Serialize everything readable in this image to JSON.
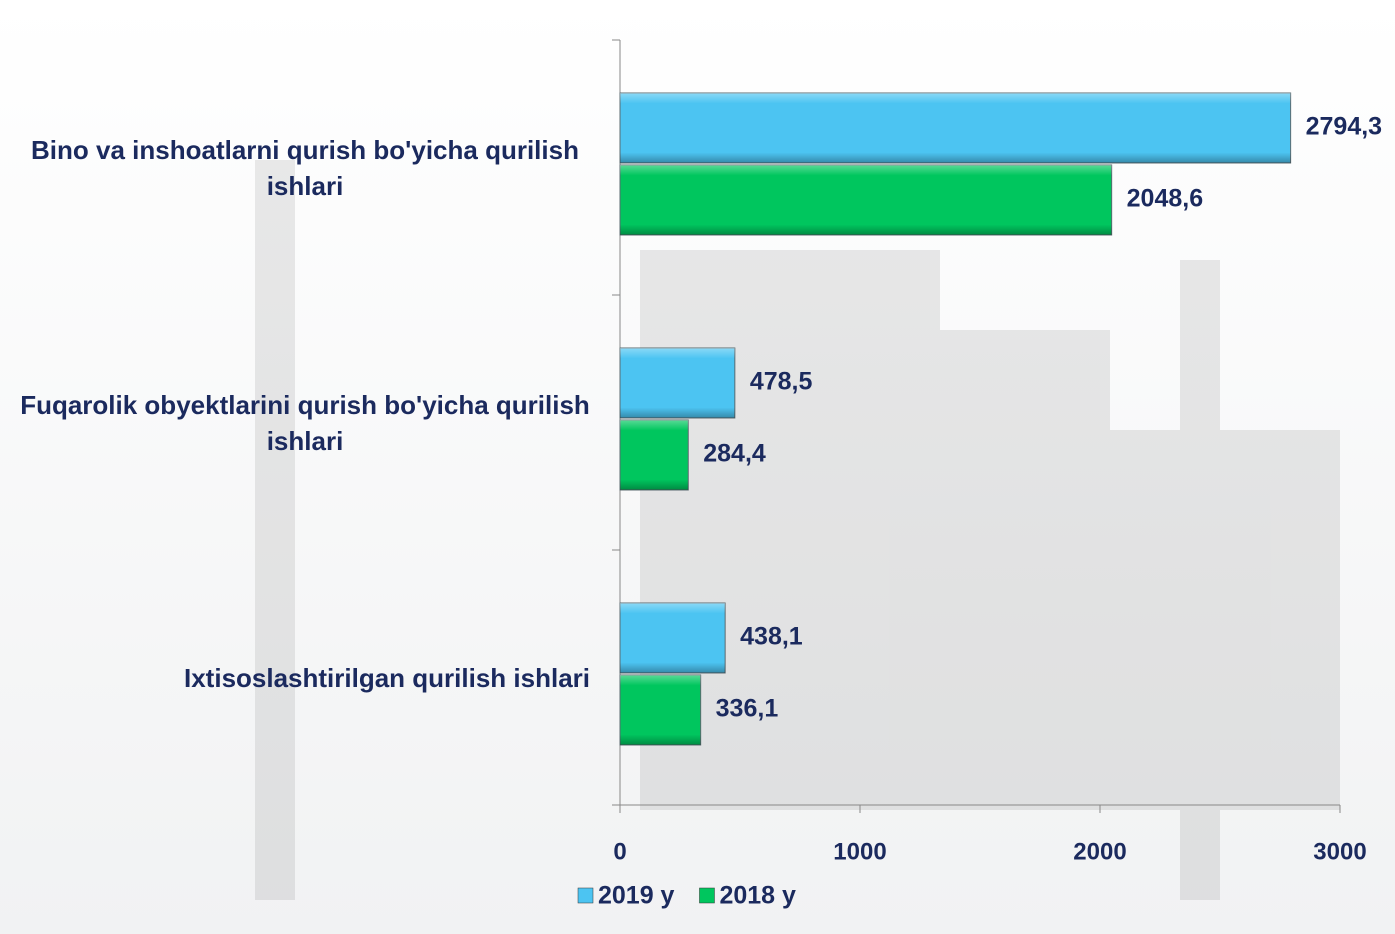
{
  "chart_data": {
    "type": "hbar",
    "categories": [
      "Bino va inshoatlarni qurish bo'yicha qurilish ishlari",
      "Fuqarolik obyektlarini qurish bo'yicha qurilish ishlari",
      "Ixtisoslashtirilgan qurilish ishlari"
    ],
    "series": [
      {
        "name": "2019 y",
        "color": "#4cc4f2",
        "values": [
          2794.3,
          478.5,
          438.1
        ],
        "value_labels": [
          "2794,3",
          "478,5",
          "438,1"
        ]
      },
      {
        "name": "2018 y",
        "color": "#00c65e",
        "values": [
          2048.6,
          284.4,
          336.1
        ],
        "value_labels": [
          "2048,6",
          "284,4",
          "336,1"
        ]
      }
    ],
    "xlim": [
      0,
      3000
    ],
    "xticks": [
      0,
      1000,
      2000,
      3000
    ],
    "legend": "bottom"
  }
}
